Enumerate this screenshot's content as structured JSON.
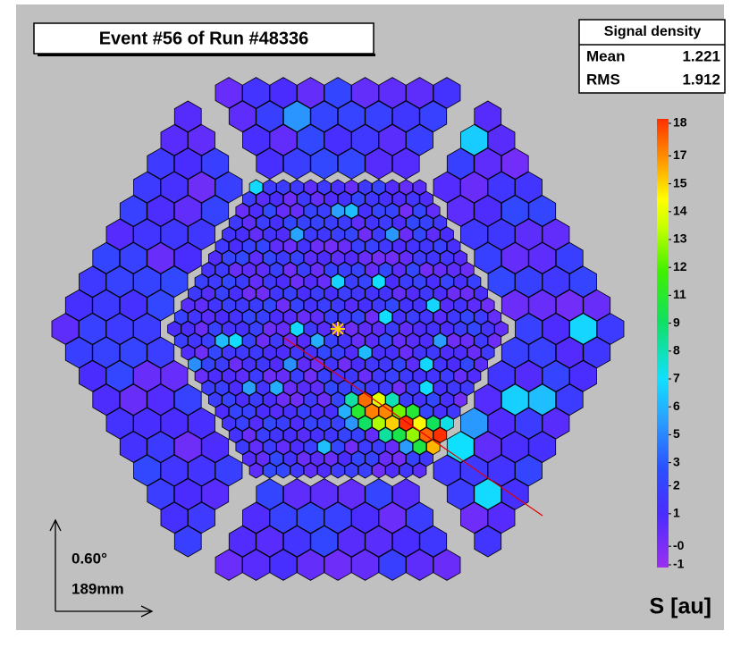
{
  "title": "Event #56 of Run #48336",
  "stats": {
    "header": "Signal density",
    "rows": [
      {
        "label": "Mean",
        "value": 1.221
      },
      {
        "label": "RMS",
        "value": 1.912
      }
    ]
  },
  "color_scale": {
    "lim": [
      -1,
      18
    ],
    "ticks": [
      -1,
      {
        "value": -0.2,
        "label": "-0"
      },
      {
        "value": 1.2,
        "label": "1"
      },
      {
        "value": 2.4,
        "label": "2"
      },
      {
        "value": 3.4,
        "label": "3"
      },
      {
        "value": 4.6,
        "label": "5"
      },
      {
        "value": 5.8,
        "label": "6"
      },
      7,
      {
        "value": 8.2,
        "label": "8"
      },
      {
        "value": 9.4,
        "label": "9"
      },
      {
        "value": 10.6,
        "label": "11"
      },
      {
        "value": 11.8,
        "label": "12"
      },
      13,
      {
        "value": 14.2,
        "label": "14"
      },
      {
        "value": 15.4,
        "label": "15"
      },
      {
        "value": 16.6,
        "label": "17"
      },
      18
    ],
    "unit_label": "S [au]"
  },
  "scale_bar": {
    "angle": "0.60°",
    "length": "189mm"
  }
}
